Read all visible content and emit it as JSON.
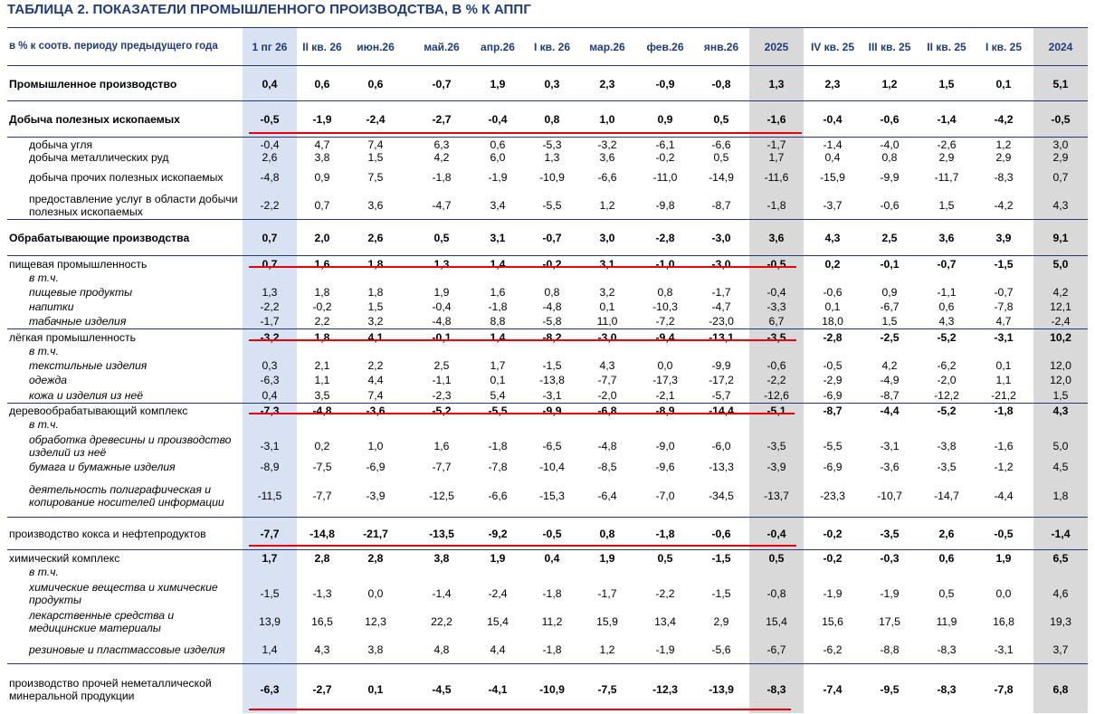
{
  "title": "ТАБЛИЦА 2. ПОКАЗАТЕЛИ ПРОМЫШЛЕННОГО ПРОИЗВОДСТВА, В % К АППГ",
  "header": {
    "row_label": "в % к соотв. периоду предыдущего года",
    "columns": [
      "1 пг 26",
      "II кв. 26",
      "июн.26",
      "май.26",
      "апр.26",
      "I кв. 26",
      "мар.26",
      "фев.26",
      "янв.26",
      "2025",
      "IV кв. 25",
      "III кв. 25",
      "II кв. 25",
      "I кв. 25",
      "2024"
    ]
  },
  "highlight_colors": {
    "first_half_column": "#d9e2f3",
    "annual_columns": "#d9d9d9",
    "underline": "#e8000b",
    "text_accent": "#1f3b7a"
  },
  "rows": [
    {
      "label": "Промышленное производство",
      "bold": true,
      "values": [
        "0,4",
        "0,6",
        "0,6",
        "-0,7",
        "1,9",
        "0,3",
        "2,3",
        "-0,9",
        "-0,8",
        "1,3",
        "2,3",
        "1,2",
        "1,5",
        "0,1",
        "5,1"
      ]
    },
    {
      "label": "Добыча полезных ископаемых",
      "bold": true,
      "values": [
        "-0,5",
        "-1,9",
        "-2,4",
        "-2,7",
        "-0,4",
        "0,8",
        "1,0",
        "0,9",
        "0,5",
        "-1,6",
        "-0,4",
        "-0,6",
        "-1,4",
        "-4,2",
        "-0,5"
      ]
    },
    {
      "label": "добыча угля",
      "values": [
        "-0,4",
        "4,7",
        "7,4",
        "6,3",
        "0,6",
        "-5,3",
        "-3,2",
        "-6,1",
        "-6,6",
        "-1,7",
        "-1,4",
        "-4,0",
        "-2,6",
        "1,2",
        "3,0"
      ]
    },
    {
      "label": "добыча металлических руд",
      "values": [
        "2,6",
        "3,8",
        "1,5",
        "4,2",
        "6,0",
        "1,3",
        "3,6",
        "-0,2",
        "0,5",
        "1,7",
        "0,4",
        "0,8",
        "2,9",
        "2,9",
        "2,9"
      ]
    },
    {
      "label": "добыча прочих полезных ископаемых",
      "values": [
        "-4,8",
        "0,9",
        "7,5",
        "-1,8",
        "-1,9",
        "-10,9",
        "-6,6",
        "-11,0",
        "-14,9",
        "-11,6",
        "-15,9",
        "-9,9",
        "-11,7",
        "-8,3",
        "0,7"
      ]
    },
    {
      "label": "предоставление услуг в области добычи полезных ископаемых",
      "values": [
        "-2,2",
        "0,7",
        "3,6",
        "-4,7",
        "3,4",
        "-5,5",
        "1,2",
        "-9,8",
        "-8,7",
        "-1,8",
        "-3,7",
        "-0,6",
        "1,5",
        "-4,2",
        "4,3"
      ]
    },
    {
      "label": "Обрабатывающие производства",
      "bold": true,
      "values": [
        "0,7",
        "2,0",
        "2,6",
        "0,5",
        "3,1",
        "-0,7",
        "3,0",
        "-2,8",
        "-3,0",
        "3,6",
        "4,3",
        "2,5",
        "3,6",
        "3,9",
        "9,1"
      ]
    },
    {
      "label": "пищевая промышленность",
      "values": [
        "0,7",
        "1,6",
        "1,8",
        "1,3",
        "1,4",
        "-0,2",
        "3,1",
        "-1,0",
        "-3,0",
        "-0,5",
        "0,2",
        "-0,1",
        "-0,7",
        "-1,5",
        "5,0"
      ]
    },
    {
      "label": "в т.ч.",
      "values": []
    },
    {
      "label": "пищевые продукты",
      "values": [
        "1,3",
        "1,8",
        "1,8",
        "1,9",
        "1,6",
        "0,8",
        "3,2",
        "0,8",
        "-1,7",
        "-0,4",
        "-0,6",
        "0,9",
        "-1,1",
        "-0,7",
        "4,2"
      ]
    },
    {
      "label": "напитки",
      "values": [
        "-2,2",
        "-0,2",
        "1,5",
        "-0,4",
        "-1,8",
        "-4,8",
        "0,1",
        "-10,3",
        "-4,7",
        "-3,3",
        "0,1",
        "-6,7",
        "0,6",
        "-7,8",
        "12,1"
      ]
    },
    {
      "label": "табачные изделия",
      "values": [
        "-1,7",
        "2,2",
        "3,2",
        "-4,8",
        "8,8",
        "-5,8",
        "11,0",
        "-7,2",
        "-23,0",
        "6,7",
        "18,0",
        "1,5",
        "4,3",
        "4,7",
        "-2,4"
      ]
    },
    {
      "label": "лёгкая промышленность",
      "values": [
        "-3,2",
        "1,8",
        "4,1",
        "-0,1",
        "1,4",
        "-8,2",
        "-3,0",
        "-9,4",
        "-13,1",
        "-3,5",
        "-2,8",
        "-2,5",
        "-5,2",
        "-3,1",
        "10,2"
      ]
    },
    {
      "label": "в т.ч.",
      "values": []
    },
    {
      "label": "текстильные изделия",
      "values": [
        "0,3",
        "2,1",
        "2,2",
        "2,5",
        "1,7",
        "-1,5",
        "4,3",
        "0,0",
        "-9,9",
        "-0,6",
        "-0,5",
        "4,2",
        "-6,2",
        "0,1",
        "12,0"
      ]
    },
    {
      "label": "одежда",
      "values": [
        "-6,3",
        "1,1",
        "4,4",
        "-1,1",
        "0,1",
        "-13,8",
        "-7,7",
        "-17,3",
        "-17,2",
        "-2,2",
        "-2,9",
        "-4,9",
        "-2,0",
        "1,1",
        "12,0"
      ]
    },
    {
      "label": "кожа и изделия из неё",
      "values": [
        "0,4",
        "3,5",
        "7,4",
        "-2,3",
        "5,4",
        "-3,1",
        "-2,0",
        "-2,1",
        "-5,7",
        "-12,6",
        "-6,9",
        "-8,7",
        "-12,2",
        "-21,2",
        "1,5"
      ]
    },
    {
      "label": "деревообрабатывающий комплекс",
      "values": [
        "-7,3",
        "-4,8",
        "-3,6",
        "-5,2",
        "-5,5",
        "-9,9",
        "-6,8",
        "-8,9",
        "-14,4",
        "-5,1",
        "-8,7",
        "-4,4",
        "-5,2",
        "-1,8",
        "4,3"
      ]
    },
    {
      "label": "в т.ч.",
      "values": []
    },
    {
      "label": "обработка древесины и производство изделий из неё",
      "values": [
        "-3,1",
        "0,2",
        "1,0",
        "1,6",
        "-1,8",
        "-6,5",
        "-4,8",
        "-9,0",
        "-6,0",
        "-3,5",
        "-5,5",
        "-3,1",
        "-3,8",
        "-1,6",
        "5,0"
      ]
    },
    {
      "label": "бумага и бумажные изделия",
      "values": [
        "-8,9",
        "-7,5",
        "-6,9",
        "-7,7",
        "-7,8",
        "-10,4",
        "-8,5",
        "-9,6",
        "-13,3",
        "-3,9",
        "-6,9",
        "-3,6",
        "-3,5",
        "-1,2",
        "4,5"
      ]
    },
    {
      "label": "деятельность полиграфическая и копирование носителей информации",
      "values": [
        "-11,5",
        "-7,7",
        "-3,9",
        "-12,5",
        "-6,6",
        "-15,3",
        "-6,4",
        "-7,0",
        "-34,5",
        "-13,7",
        "-23,3",
        "-10,7",
        "-14,7",
        "-4,4",
        "1,8"
      ]
    },
    {
      "label": "производство кокса и нефтепродуктов",
      "values": [
        "-7,7",
        "-14,8",
        "-21,7",
        "-13,5",
        "-9,2",
        "-0,5",
        "0,8",
        "-1,8",
        "-0,6",
        "-0,4",
        "-0,2",
        "-3,5",
        "2,6",
        "-0,5",
        "-1,4"
      ]
    },
    {
      "label": "химический комплекс",
      "values": [
        "1,7",
        "2,8",
        "2,8",
        "3,8",
        "1,9",
        "0,4",
        "1,9",
        "0,5",
        "-1,5",
        "0,5",
        "-0,2",
        "-0,3",
        "0,6",
        "1,9",
        "6,5"
      ]
    },
    {
      "label": "в т.ч.",
      "values": []
    },
    {
      "label": "химические вещества и химические продукты",
      "values": [
        "-1,5",
        "-1,3",
        "0,0",
        "-1,4",
        "-2,4",
        "-1,8",
        "-1,7",
        "-2,2",
        "-1,5",
        "-0,8",
        "-1,9",
        "-1,9",
        "0,5",
        "0,0",
        "4,6"
      ]
    },
    {
      "label": "лекарственные средства и медицинские материалы",
      "values": [
        "13,9",
        "16,5",
        "12,3",
        "22,2",
        "15,4",
        "11,2",
        "15,9",
        "13,4",
        "2,9",
        "15,4",
        "15,6",
        "17,5",
        "11,9",
        "16,8",
        "19,3"
      ]
    },
    {
      "label": "резиновые и пластмассовые изделия",
      "values": [
        "1,4",
        "4,3",
        "3,8",
        "4,8",
        "4,4",
        "-1,8",
        "1,2",
        "-1,9",
        "-5,6",
        "-6,7",
        "-6,2",
        "-8,8",
        "-8,3",
        "-3,1",
        "3,7"
      ]
    },
    {
      "label": "производство прочей неметаллической минеральной продукции",
      "values": [
        "-6,3",
        "-2,7",
        "0,1",
        "-4,5",
        "-4,1",
        "-10,9",
        "-7,5",
        "-12,3",
        "-13,9",
        "-8,3",
        "-7,4",
        "-9,5",
        "-8,3",
        "-7,8",
        "6,8"
      ]
    }
  ]
}
